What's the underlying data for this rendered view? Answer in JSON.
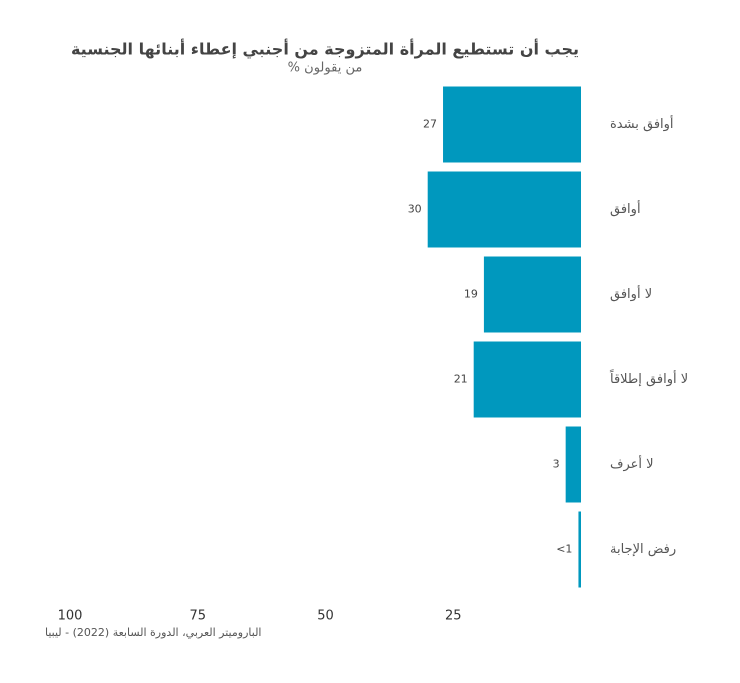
{
  "chart_data": {
    "type": "bar",
    "orientation": "horizontal",
    "title": "يجب أن تستطيع المرأة المتزوجة من أجنبي إعطاء أبنائها الجنسية",
    "subtitle": "% من يقولون",
    "categories": [
      "أوافق بشدة",
      "أوافق",
      "لا أوافق",
      "لا أوافق إطلاقاً",
      "لا أعرف",
      "رفض الإجابة"
    ],
    "values": [
      27,
      30,
      19,
      21,
      3,
      0.5
    ],
    "value_labels": [
      "27",
      "30",
      "19",
      "21",
      "3",
      "<1"
    ],
    "color": "#0098be",
    "xlim": [
      100,
      0
    ],
    "xticks": [
      100,
      75,
      50,
      25
    ],
    "grid": false,
    "source": "الباروميتر العربي، الدورة السابعة (2022) - ليبيا"
  }
}
